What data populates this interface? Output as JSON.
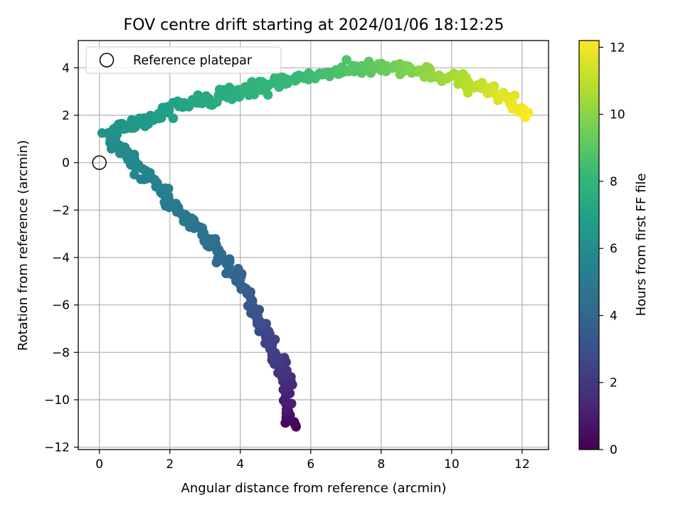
{
  "chart_data": {
    "type": "scatter",
    "title": "FOV centre drift starting at 2024/01/06 18:12:25",
    "xlabel": "Angular distance from reference (arcmin)",
    "ylabel": "Rotation from reference (arcmin)",
    "colorbar_label": "Hours from first FF file",
    "xlim": [
      -0.6,
      12.75
    ],
    "ylim": [
      -12.1,
      5.15
    ],
    "clim": [
      0,
      12.2
    ],
    "xticks": [
      0,
      2,
      4,
      6,
      8,
      10,
      12
    ],
    "xtick_labels": [
      "0",
      "2",
      "4",
      "6",
      "8",
      "10",
      "12"
    ],
    "yticks": [
      -12,
      -10,
      -8,
      -6,
      -4,
      -2,
      0,
      2,
      4
    ],
    "ytick_labels": [
      "−12",
      "−10",
      "−8",
      "−6",
      "−4",
      "−2",
      "0",
      "2",
      "4"
    ],
    "cticks": [
      0,
      2,
      4,
      6,
      8,
      10,
      12
    ],
    "ctick_labels": [
      "0",
      "2",
      "4",
      "6",
      "8",
      "10",
      "12"
    ],
    "grid": true,
    "colormap": "viridis",
    "colormap_stops": [
      "#440154",
      "#482878",
      "#3e4989",
      "#31688e",
      "#26828e",
      "#1f9e89",
      "#35b779",
      "#6ece58",
      "#b5de2b",
      "#fde725"
    ],
    "legend": {
      "location": "upper-left",
      "entries": [
        "Reference platepar"
      ]
    },
    "reference_point": {
      "x": 0,
      "y": 0,
      "label": "Reference platepar"
    },
    "track_keypoints": [
      [
        5.6,
        -11.2,
        0.05
      ],
      [
        5.3,
        -10.55,
        0.5
      ],
      [
        5.4,
        -9.3,
        1.5
      ],
      [
        5.0,
        -8.1,
        2.2
      ],
      [
        4.6,
        -6.9,
        2.8
      ],
      [
        4.3,
        -6.0,
        3.3
      ],
      [
        4.1,
        -5.4,
        3.6
      ],
      [
        4.0,
        -4.8,
        3.9
      ],
      [
        3.5,
        -4.1,
        4.2
      ],
      [
        3.1,
        -3.3,
        4.5
      ],
      [
        2.6,
        -2.5,
        4.8
      ],
      [
        2.0,
        -1.6,
        5.1
      ],
      [
        1.5,
        -0.7,
        5.4
      ],
      [
        1.0,
        -0.1,
        5.6
      ],
      [
        0.7,
        0.4,
        5.8
      ],
      [
        0.4,
        0.8,
        5.95
      ],
      [
        0.2,
        1.3,
        6.1
      ],
      [
        0.5,
        1.5,
        6.25
      ],
      [
        1.0,
        1.6,
        6.45
      ],
      [
        1.5,
        1.9,
        6.7
      ],
      [
        2.0,
        2.2,
        6.9
      ],
      [
        2.5,
        2.5,
        7.1
      ],
      [
        3.0,
        2.7,
        7.3
      ],
      [
        3.5,
        2.85,
        7.5
      ],
      [
        4.0,
        3.0,
        7.7
      ],
      [
        4.6,
        3.2,
        7.9
      ],
      [
        5.2,
        3.4,
        8.1
      ],
      [
        5.8,
        3.6,
        8.3
      ],
      [
        6.4,
        3.75,
        8.5
      ],
      [
        7.0,
        3.9,
        8.75
      ],
      [
        7.6,
        4.0,
        9.05
      ],
      [
        8.2,
        3.95,
        9.4
      ],
      [
        8.8,
        3.9,
        9.75
      ],
      [
        9.4,
        3.75,
        10.1
      ],
      [
        10.0,
        3.55,
        10.5
      ],
      [
        10.6,
        3.3,
        10.9
      ],
      [
        11.1,
        3.1,
        11.3
      ],
      [
        11.6,
        2.7,
        11.7
      ],
      [
        12.1,
        2.1,
        12.15
      ]
    ],
    "points_count": 480
  }
}
